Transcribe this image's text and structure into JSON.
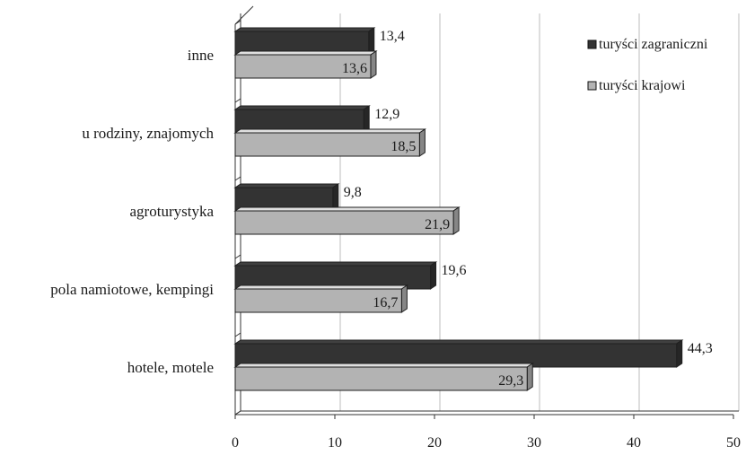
{
  "chart_data": {
    "type": "bar",
    "orientation": "horizontal",
    "title": "",
    "xlabel": "",
    "ylabel": "",
    "categories": [
      "hotele, motele",
      "pola namiotowe, kempingi",
      "agroturystyka",
      "u rodziny, znajomych",
      "inne"
    ],
    "series": [
      {
        "name": "turyści zagraniczni",
        "color": "#333333",
        "values": [
          44.3,
          19.6,
          9.8,
          12.9,
          13.4
        ],
        "labels": [
          "44,3",
          "19,6",
          "9,8",
          "12,9",
          "13,4"
        ]
      },
      {
        "name": "turyści krajowi",
        "color": "#b3b3b3",
        "values": [
          29.3,
          16.7,
          21.9,
          18.5,
          13.6
        ],
        "labels": [
          "29,3",
          "16,7",
          "21,9",
          "18,5",
          "13,6"
        ]
      }
    ],
    "xlim": [
      0,
      50
    ],
    "xticks": [
      "0",
      "10",
      "20",
      "30",
      "40",
      "50"
    ],
    "grid": true,
    "legend": "top-right"
  }
}
